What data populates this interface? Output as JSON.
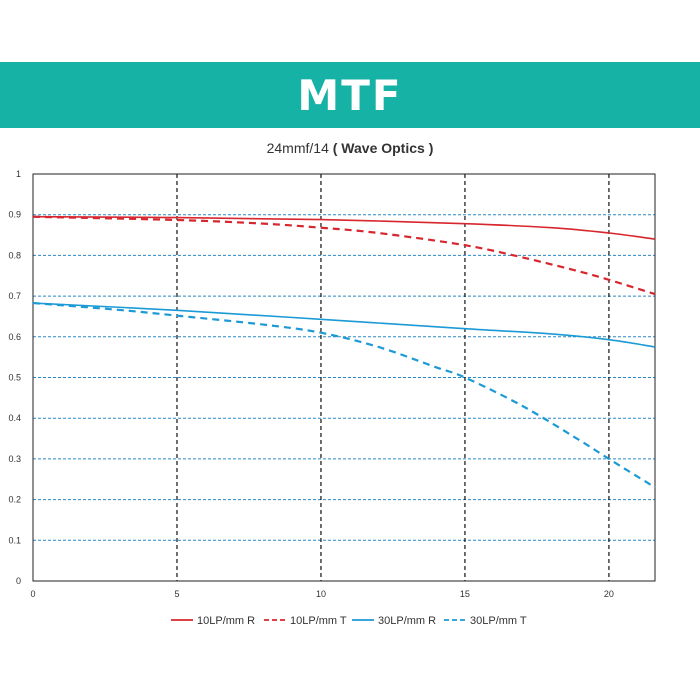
{
  "banner": {
    "title": "MTF",
    "color": "#17b2a6"
  },
  "subtitle": {
    "main": "24mmf/14",
    "bold": "( Wave Optics )"
  },
  "chart_data": {
    "type": "line",
    "title": "24mmf/14 ( Wave Optics )",
    "xlabel": "",
    "ylabel": "",
    "xlim": [
      0,
      21.6
    ],
    "ylim": [
      0,
      1
    ],
    "x_ticks": [
      0,
      5,
      10,
      15,
      20
    ],
    "y_ticks": [
      0,
      0.1,
      0.2,
      0.3,
      0.4,
      0.5,
      0.6,
      0.7,
      0.8,
      0.9,
      1
    ],
    "grid": "vertical black dashed at x ticks, horizontal blue dashed at y ticks",
    "legend_position": "bottom",
    "series": [
      {
        "name": "10LP/mm R",
        "color": "#d8262e",
        "dash": "solid",
        "x": [
          0,
          5,
          10,
          15,
          18,
          20,
          21.6
        ],
        "y": [
          0.895,
          0.893,
          0.888,
          0.878,
          0.868,
          0.855,
          0.84
        ]
      },
      {
        "name": "10LP/mm T",
        "color": "#d8262e",
        "dash": "dashed",
        "x": [
          0,
          5,
          8,
          10,
          12,
          15,
          17,
          19,
          20,
          21.6
        ],
        "y": [
          0.895,
          0.887,
          0.878,
          0.868,
          0.855,
          0.825,
          0.795,
          0.76,
          0.74,
          0.705
        ]
      },
      {
        "name": "30LP/mm R",
        "color": "#1b9ad6",
        "dash": "solid",
        "x": [
          0,
          5,
          10,
          15,
          18,
          20,
          21.6
        ],
        "y": [
          0.683,
          0.665,
          0.643,
          0.62,
          0.607,
          0.593,
          0.575
        ]
      },
      {
        "name": "30LP/mm T",
        "color": "#1b9ad6",
        "dash": "dashed",
        "x": [
          0,
          3,
          5,
          8,
          10,
          12,
          14,
          15,
          17,
          19,
          20,
          21.6
        ],
        "y": [
          0.683,
          0.666,
          0.652,
          0.63,
          0.61,
          0.575,
          0.525,
          0.5,
          0.43,
          0.345,
          0.3,
          0.23
        ]
      }
    ]
  }
}
